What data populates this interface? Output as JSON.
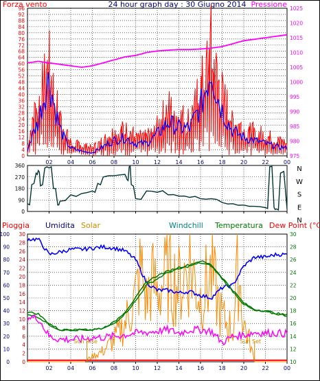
{
  "header": {
    "left_label": "Forza vento",
    "title": "24 hour graph day : 30 Giugno 2014",
    "right_label": "Pressione"
  },
  "bottom_header": {
    "labels": [
      "Pioggia",
      "Umidita",
      "Solar",
      "Windchill",
      "Temperatura",
      "Dew Point (°C)"
    ]
  },
  "colors": {
    "wind_gust": "#ff0000",
    "wind_avg": "#0000ff",
    "pressure": "#ff00ff",
    "direction": "#003333",
    "rain": "#ff0000",
    "humidity": "#0000ff",
    "solar": "#ff8800",
    "windchill": "#008000",
    "temperature": "#007700",
    "dewpoint": "#ff00ff",
    "grid": "#000000",
    "header_red": "#ff0000",
    "header_navy": "#000080",
    "header_magenta": "#ff00ff",
    "header_teal": "#008080",
    "header_orange": "#cc8800",
    "header_green": "#007700"
  },
  "chart_data": [
    {
      "type": "line",
      "xlabel": "",
      "ylabel": "",
      "x_tick_labels": [
        "02",
        "04",
        "06",
        "08",
        "10",
        "12",
        "14",
        "16",
        "18",
        "20",
        "22",
        "00"
      ],
      "y_left_ticks": [
        "0",
        "4",
        "8",
        "12",
        "16",
        "20",
        "24",
        "28",
        "32",
        "36",
        "40",
        "44",
        "48",
        "52",
        "56",
        "60",
        "64",
        "68",
        "72",
        "76",
        "80",
        "84",
        "88",
        "92",
        "96"
      ],
      "y_right_ticks": [
        "975",
        "980",
        "985",
        "990",
        "995",
        "1000",
        "1005",
        "1010",
        "1015",
        "1020",
        "1025"
      ],
      "ylim_left": [
        0,
        96
      ],
      "ylim_right": [
        975,
        1025
      ],
      "grid": true,
      "series": [
        {
          "name": "Forza vento",
          "axis": "left",
          "x": [
            0,
            0.5,
            1,
            1.5,
            2,
            2.5,
            3,
            3.5,
            4,
            5,
            6,
            7,
            8,
            9,
            10,
            11,
            12,
            13,
            14,
            15,
            16,
            16.5,
            17,
            17.5,
            18,
            18.5,
            19,
            20,
            21,
            22,
            23,
            24
          ],
          "values": [
            8,
            30,
            42,
            55,
            70,
            48,
            30,
            18,
            10,
            8,
            6,
            12,
            18,
            20,
            16,
            14,
            22,
            38,
            30,
            28,
            50,
            68,
            85,
            60,
            48,
            38,
            26,
            22,
            18,
            16,
            12,
            10
          ]
        },
        {
          "name": "Forza vento avg",
          "axis": "left",
          "x": [
            0,
            0.5,
            1,
            1.5,
            2,
            2.5,
            3,
            3.5,
            4,
            5,
            6,
            7,
            8,
            9,
            10,
            11,
            12,
            13,
            14,
            15,
            16,
            16.5,
            17,
            17.5,
            18,
            18.5,
            19,
            20,
            21,
            22,
            23,
            24
          ],
          "values": [
            4,
            14,
            22,
            38,
            50,
            32,
            18,
            10,
            5,
            3,
            2,
            6,
            10,
            12,
            8,
            8,
            14,
            22,
            18,
            18,
            32,
            44,
            58,
            40,
            30,
            22,
            16,
            12,
            10,
            8,
            6,
            5
          ]
        },
        {
          "name": "Pressione",
          "axis": "right",
          "x": [
            0,
            1,
            2,
            3,
            4,
            5,
            6,
            7,
            8,
            9,
            10,
            11,
            12,
            13,
            14,
            15,
            16,
            17,
            18,
            19,
            20,
            21,
            22,
            23,
            24
          ],
          "values": [
            1006.5,
            1007,
            1006.5,
            1006,
            1005.5,
            1005,
            1005.5,
            1006.5,
            1007.5,
            1008.5,
            1009,
            1010,
            1010.5,
            1010.8,
            1011,
            1011,
            1011.2,
            1011.5,
            1012,
            1013,
            1014,
            1014.5,
            1015,
            1015.5,
            1016
          ]
        }
      ]
    },
    {
      "type": "line",
      "x_tick_labels": [],
      "y_left_ticks": [
        "0",
        "90",
        "180",
        "270",
        "360"
      ],
      "y_right_ticks": [
        "N",
        "W",
        "S",
        "E",
        "N"
      ],
      "ylim_left": [
        0,
        360
      ],
      "grid": true,
      "series": [
        {
          "name": "Direzione",
          "x": [
            0,
            0.4,
            0.8,
            1,
            1.2,
            1.6,
            2,
            2.4,
            2.8,
            3,
            4,
            5,
            6,
            6.5,
            7,
            8,
            9,
            9.2,
            9.4,
            9.6,
            10,
            11,
            12,
            13,
            14,
            15,
            16,
            17,
            18,
            19,
            20,
            21,
            22,
            22.4,
            22.8,
            23,
            23.4,
            24
          ],
          "values": [
            60,
            210,
            300,
            320,
            200,
            340,
            340,
            180,
            50,
            80,
            130,
            140,
            160,
            220,
            270,
            280,
            290,
            250,
            350,
            210,
            100,
            160,
            150,
            130,
            120,
            110,
            100,
            100,
            70,
            60,
            50,
            40,
            30,
            350,
            30,
            20,
            300,
            20
          ]
        }
      ]
    },
    {
      "type": "line",
      "x_tick_labels": [
        "02",
        "04",
        "06",
        "08",
        "10",
        "12",
        "14",
        "16",
        "18",
        "20",
        "22",
        "00"
      ],
      "y_ticks_humidity": [
        "0",
        "10",
        "20",
        "30",
        "40",
        "50",
        "60",
        "70",
        "80",
        "90",
        "100"
      ],
      "y_ticks_rain": [
        "0",
        "2",
        "4",
        "6",
        "8",
        "10",
        "12",
        "14",
        "16",
        "18",
        "20",
        "22",
        "24",
        "26",
        "28",
        "30"
      ],
      "y_ticks_temp": [
        "10",
        "12",
        "14",
        "16",
        "18",
        "20",
        "22",
        "24",
        "26",
        "28",
        "30"
      ],
      "ylim_humidity": [
        0,
        100
      ],
      "ylim_temp": [
        10,
        30
      ],
      "grid": true,
      "annotations": [
        "Sun Rise",
        "Sun Set"
      ],
      "series": [
        {
          "name": "Pioggia",
          "x": [
            0,
            24
          ],
          "values": [
            0.2,
            0.2
          ]
        },
        {
          "name": "Umidita",
          "x": [
            0,
            1,
            2,
            3,
            4,
            5,
            6,
            7,
            8,
            9,
            10,
            11,
            12,
            13,
            14,
            15,
            16,
            17,
            18,
            19,
            20,
            21,
            22,
            23,
            24
          ],
          "values": [
            96,
            96,
            84,
            86,
            88,
            88,
            89,
            90,
            89,
            87,
            80,
            62,
            56,
            56,
            54,
            55,
            52,
            50,
            58,
            60,
            75,
            82,
            82,
            84,
            84
          ]
        },
        {
          "name": "Solar",
          "x": [
            0,
            5.3,
            5.5,
            6,
            7,
            8,
            9,
            10,
            10.5,
            11,
            11.5,
            12,
            13,
            14,
            15,
            16,
            17,
            18,
            19,
            19.5,
            20,
            20.5,
            21,
            22,
            23,
            24
          ],
          "values": [
            0,
            0,
            2,
            5,
            10,
            20,
            35,
            60,
            85,
            55,
            75,
            65,
            80,
            70,
            90,
            60,
            80,
            40,
            30,
            88,
            35,
            20,
            0,
            0,
            0,
            0
          ]
        },
        {
          "name": "Windchill",
          "x": [
            0,
            1,
            2,
            3,
            4,
            5,
            6,
            7,
            8,
            9,
            10,
            11,
            12,
            13,
            14,
            15,
            16,
            17,
            18,
            19,
            20,
            21,
            22,
            23,
            24
          ],
          "values": [
            17.5,
            17,
            15.8,
            15,
            15,
            15,
            15,
            15.2,
            16,
            17.5,
            19.5,
            22,
            23,
            24,
            24.5,
            25,
            25.5,
            25,
            23,
            21,
            19,
            18,
            17.8,
            17.5,
            17.2
          ]
        },
        {
          "name": "Temperatura",
          "x": [
            0,
            1,
            2,
            3,
            4,
            5,
            6,
            7,
            8,
            9,
            10,
            11,
            12,
            13,
            14,
            15,
            16,
            17,
            18,
            19,
            20,
            21,
            22,
            23,
            24
          ],
          "values": [
            17.8,
            17.5,
            16,
            15,
            15,
            15,
            15,
            15.3,
            16.2,
            17.8,
            20,
            22.5,
            23.5,
            24.2,
            24.8,
            25.2,
            25.8,
            25.2,
            23.2,
            21.2,
            19.2,
            18.2,
            18,
            17.6,
            17.3
          ]
        },
        {
          "name": "Dew Point (°C)",
          "x": [
            0,
            1,
            2,
            3,
            4,
            5,
            6,
            7,
            8,
            9,
            10,
            11,
            12,
            13,
            14,
            15,
            16,
            17,
            18,
            19,
            20,
            21,
            22,
            23,
            24
          ],
          "values": [
            17,
            16.8,
            14,
            13.5,
            13.5,
            13.5,
            13.8,
            13.8,
            14,
            14.2,
            14.5,
            14.6,
            14.8,
            15,
            14.5,
            15,
            15,
            14.8,
            13,
            14,
            14.2,
            14.6,
            14.5,
            14.5,
            14.4
          ]
        }
      ]
    }
  ]
}
